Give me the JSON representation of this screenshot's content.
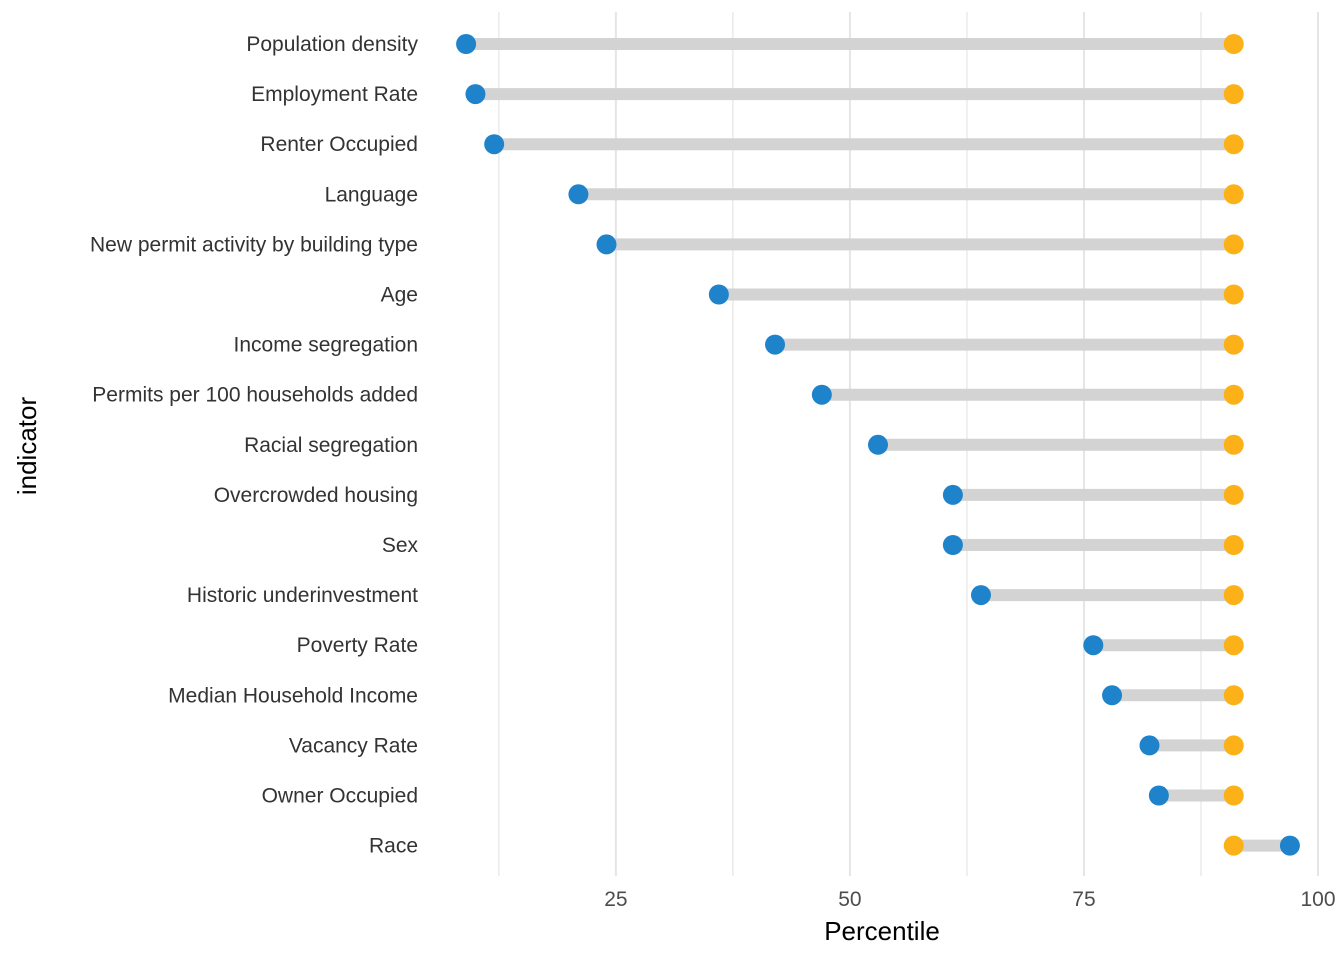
{
  "chart_data": {
    "type": "dumbbell",
    "xlabel": "Percentile",
    "ylabel": "indicator",
    "xlim": [
      6,
      100
    ],
    "x_ticks": [
      25,
      50,
      75,
      100
    ],
    "x_tick_labels": [
      "25",
      "50",
      "75",
      "100"
    ],
    "grid": true,
    "legend": "none",
    "colors": {
      "low": "#1f83cc",
      "high": "#fbb117",
      "segment": "#d3d3d3",
      "grid": "#e5e5e5"
    },
    "categories": [
      "Population density",
      "Employment Rate",
      "Renter Occupied",
      "Language",
      "New permit activity by building type",
      "Age",
      "Income segregation",
      "Permits per 100 households added",
      "Racial segregation",
      "Overcrowded housing",
      "Sex",
      "Historic underinvestment",
      "Poverty Rate",
      "Median Household Income",
      "Vacancy Rate",
      "Owner Occupied",
      "Race"
    ],
    "series": [
      {
        "values": [
          9,
          10,
          12,
          21,
          24,
          36,
          42,
          47,
          53,
          61,
          61,
          64,
          76,
          78,
          82,
          83,
          97
        ]
      },
      {
        "values": [
          91,
          91,
          91,
          91,
          91,
          91,
          91,
          91,
          91,
          91,
          91,
          91,
          91,
          91,
          91,
          91,
          91
        ]
      }
    ]
  }
}
